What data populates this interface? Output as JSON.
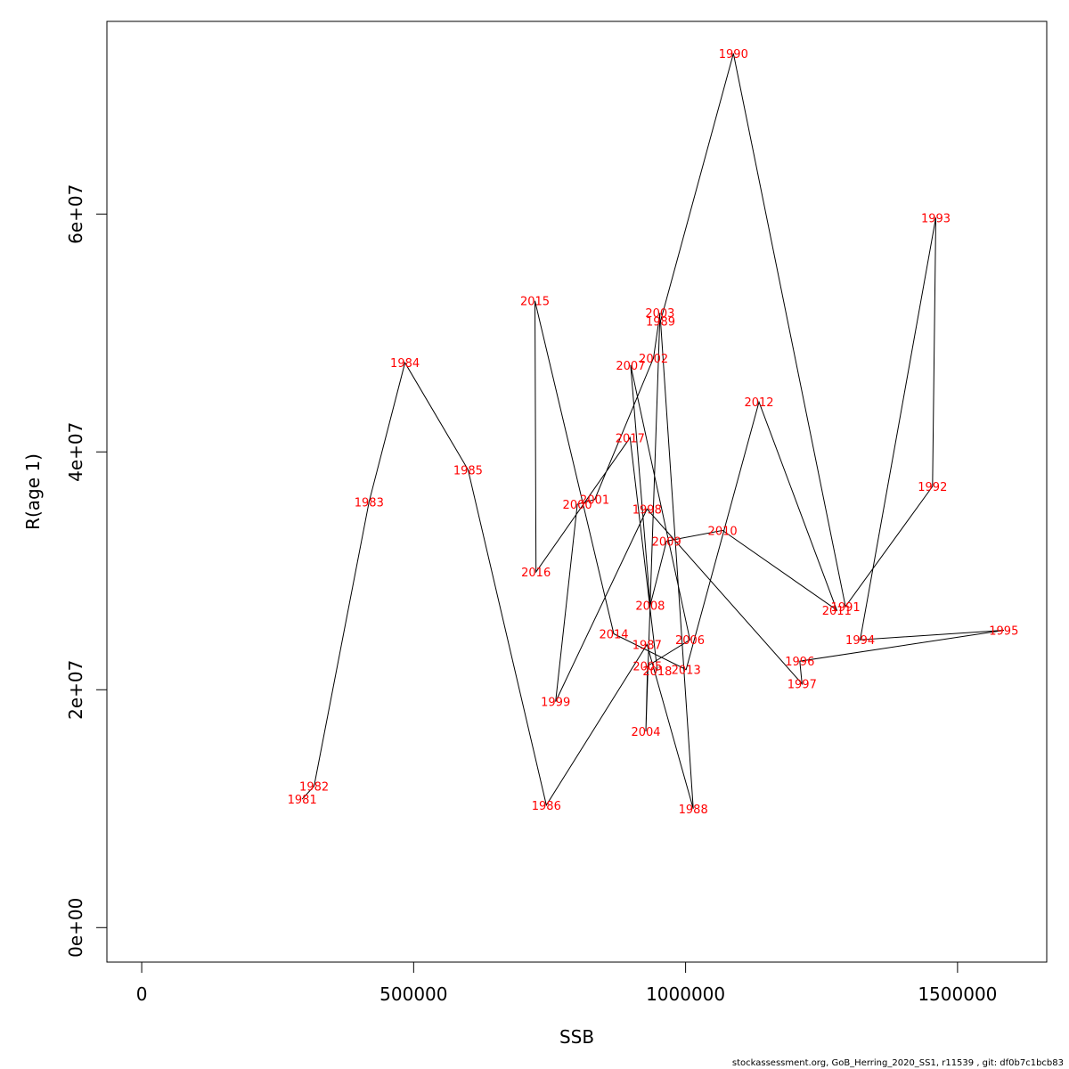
{
  "chart_data": {
    "type": "line",
    "xlabel": "SSB",
    "ylabel": "R(age 1)",
    "xlim": [
      -64000,
      1664000
    ],
    "ylim": [
      -2900000,
      76200000
    ],
    "x_ticks": [
      {
        "value": 0,
        "label": "0"
      },
      {
        "value": 500000,
        "label": "500000"
      },
      {
        "value": 1000000,
        "label": "1000000"
      },
      {
        "value": 1500000,
        "label": "1500000"
      }
    ],
    "y_ticks": [
      {
        "value": 0,
        "label": "0e+00"
      },
      {
        "value": 20000000,
        "label": "2e+07"
      },
      {
        "value": 40000000,
        "label": "4e+07"
      },
      {
        "value": 60000000,
        "label": "6e+07"
      }
    ],
    "points": [
      {
        "label": "1981",
        "x": 295000,
        "y": 10800000
      },
      {
        "label": "1982",
        "x": 317000,
        "y": 11900000
      },
      {
        "label": "1983",
        "x": 418000,
        "y": 35800000
      },
      {
        "label": "1984",
        "x": 484000,
        "y": 47500000
      },
      {
        "label": "1985",
        "x": 600000,
        "y": 38500000
      },
      {
        "label": "1986",
        "x": 744000,
        "y": 10300000
      },
      {
        "label": "1987",
        "x": 929000,
        "y": 23800000
      },
      {
        "label": "1988",
        "x": 1014000,
        "y": 10000000
      },
      {
        "label": "1989",
        "x": 954000,
        "y": 51000000
      },
      {
        "label": "1990",
        "x": 1088000,
        "y": 73500000
      },
      {
        "label": "1991",
        "x": 1294000,
        "y": 27000000
      },
      {
        "label": "1992",
        "x": 1454000,
        "y": 37100000
      },
      {
        "label": "1993",
        "x": 1460000,
        "y": 59700000
      },
      {
        "label": "1994",
        "x": 1321000,
        "y": 24200000
      },
      {
        "label": "1995",
        "x": 1585000,
        "y": 25000000
      },
      {
        "label": "1996",
        "x": 1210000,
        "y": 22400000
      },
      {
        "label": "1997",
        "x": 1214000,
        "y": 20500000
      },
      {
        "label": "1998",
        "x": 929000,
        "y": 35200000
      },
      {
        "label": "1999",
        "x": 761000,
        "y": 19000000
      },
      {
        "label": "2000",
        "x": 801000,
        "y": 35600000
      },
      {
        "label": "2001",
        "x": 833000,
        "y": 36000000
      },
      {
        "label": "2002",
        "x": 941000,
        "y": 47900000
      },
      {
        "label": "2003",
        "x": 953000,
        "y": 51700000
      },
      {
        "label": "2004",
        "x": 927000,
        "y": 16500000
      },
      {
        "label": "2005",
        "x": 930000,
        "y": 22000000
      },
      {
        "label": "2006",
        "x": 1008000,
        "y": 24200000
      },
      {
        "label": "2007",
        "x": 899000,
        "y": 47300000
      },
      {
        "label": "2008",
        "x": 935000,
        "y": 27100000
      },
      {
        "label": "2009",
        "x": 965000,
        "y": 32500000
      },
      {
        "label": "2010",
        "x": 1068000,
        "y": 33400000
      },
      {
        "label": "2011",
        "x": 1278000,
        "y": 26700000
      },
      {
        "label": "2012",
        "x": 1135000,
        "y": 44200000
      },
      {
        "label": "2013",
        "x": 1001000,
        "y": 21700000
      },
      {
        "label": "2014",
        "x": 868000,
        "y": 24700000
      },
      {
        "label": "2015",
        "x": 723000,
        "y": 52700000
      },
      {
        "label": "2016",
        "x": 725000,
        "y": 29900000
      },
      {
        "label": "2017",
        "x": 898000,
        "y": 41200000
      },
      {
        "label": "2018",
        "x": 948000,
        "y": 21600000
      }
    ]
  },
  "footer": "stockassessment.org, GoB_Herring_2020_SS1, r11539 , git: df0b7c1bcb83"
}
